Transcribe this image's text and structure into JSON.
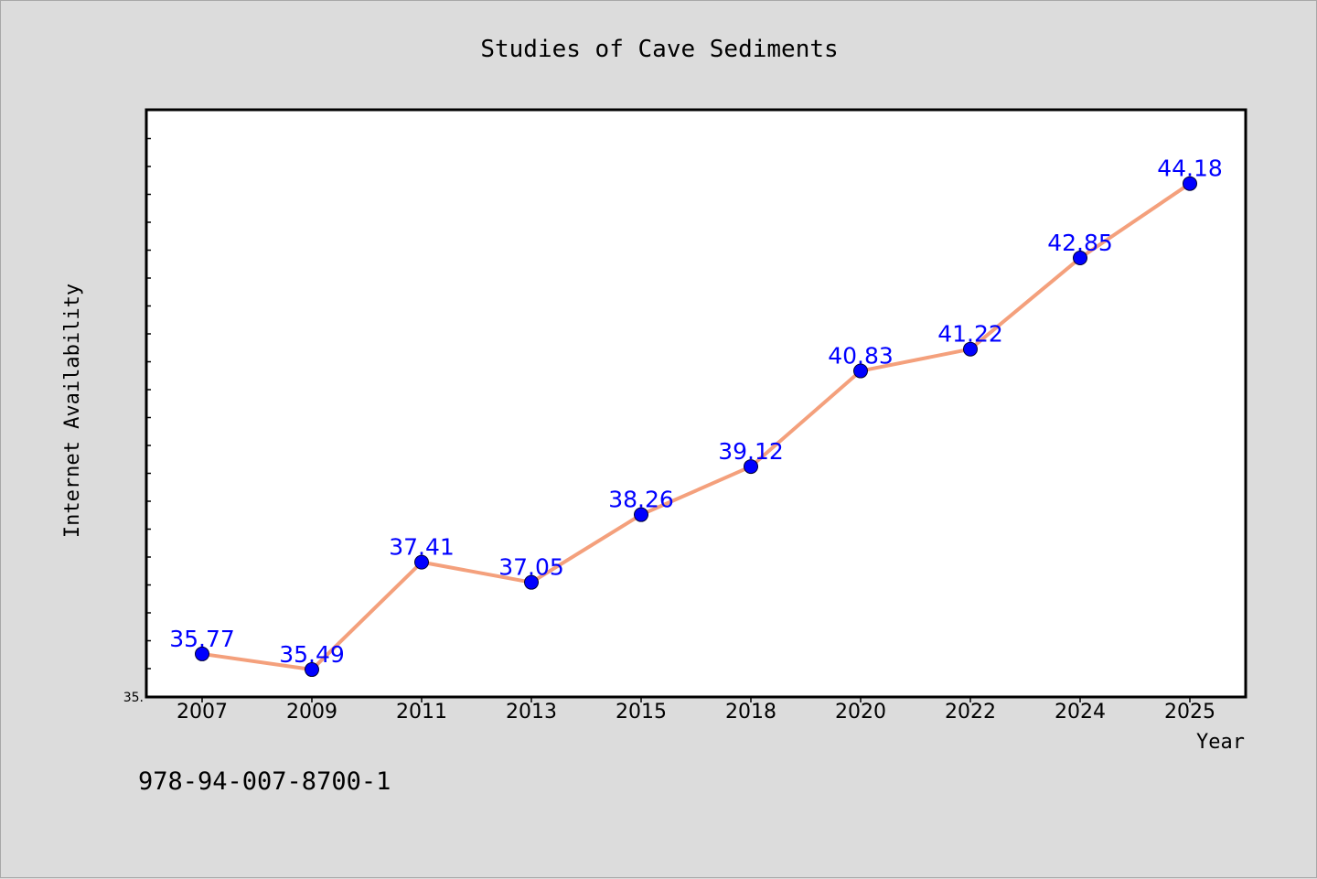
{
  "chart_data": {
    "type": "line",
    "title": "Studies of Cave Sediments",
    "xlabel": "Year",
    "ylabel": "Internet Availability",
    "categories": [
      "2007",
      "2009",
      "2011",
      "2013",
      "2015",
      "2018",
      "2020",
      "2022",
      "2024",
      "2025"
    ],
    "series": [
      {
        "values": [
          35.77,
          35.49,
          37.41,
          37.05,
          38.26,
          39.12,
          40.83,
          41.22,
          42.85,
          44.18
        ],
        "labels": [
          "35.77",
          "35.49",
          "37.41",
          "37.05",
          "38.26",
          "39.12",
          "40.83",
          "41.22",
          "42.85",
          "44.18"
        ]
      }
    ],
    "ylim": [
      35.0,
      45.5
    ],
    "y_tick_label": "35.",
    "grid": false,
    "line_color": "#f4a07c",
    "marker_color": "#0000ff",
    "label_color": "#0000ff"
  },
  "footer": {
    "isbn": "978-94-007-8700-1"
  }
}
